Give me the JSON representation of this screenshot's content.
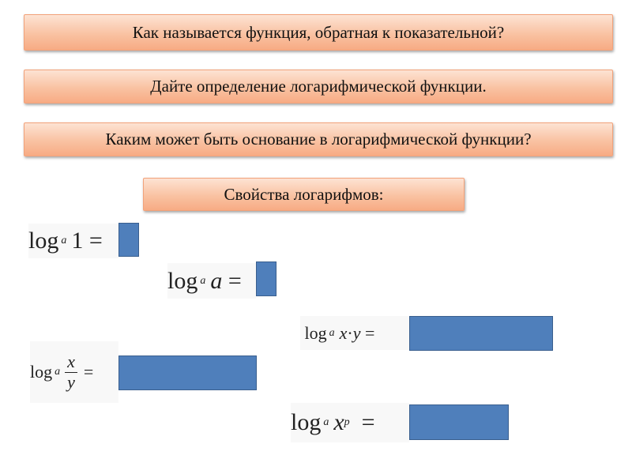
{
  "questions": [
    "Как называется функция, обратная к показательной?",
    "Дайте определение логарифмической функции.",
    "Каким может быть основание в логарифмической функции?"
  ],
  "properties_heading": "Свойства логарифмов:",
  "formulas": {
    "log": "log",
    "base": "a",
    "eq": "=",
    "f1_arg": "1",
    "f2_arg": "a",
    "f3_x": "x",
    "f3_dot": "·",
    "f3_y": "y",
    "f4_num": "x",
    "f4_den": "y",
    "f5_x": "x",
    "f5_exp": "p"
  },
  "colors": {
    "question_box": "#f9c2a2",
    "answer_box": "#4f7fbb"
  }
}
